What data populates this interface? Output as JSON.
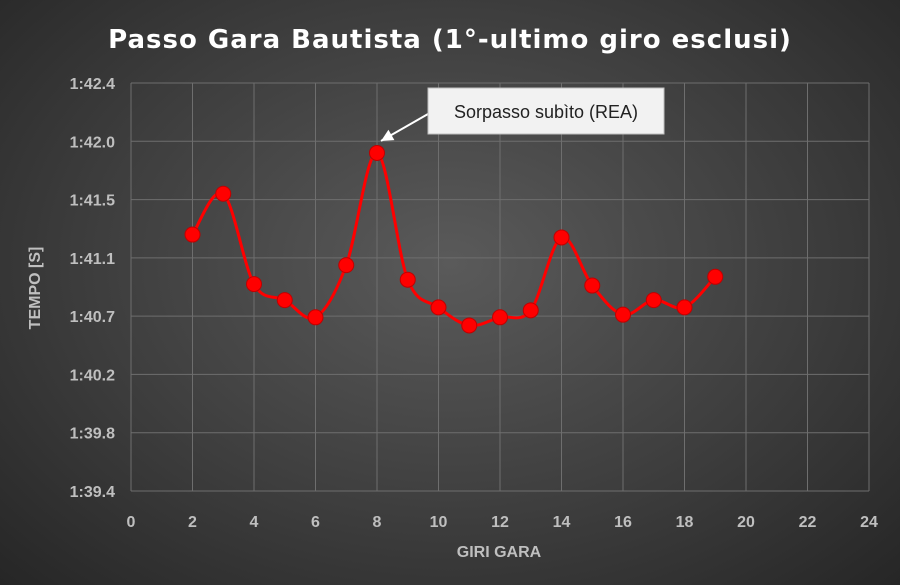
{
  "chart_data": {
    "type": "line",
    "title": "Passo Gara Bautista (1°-ultimo giro esclusi)",
    "xlabel": "GIRI GARA",
    "ylabel": "TEMPO [S]",
    "xlim": [
      0,
      24
    ],
    "x_ticks": [
      0,
      2,
      4,
      6,
      8,
      10,
      12,
      14,
      16,
      18,
      20,
      22,
      24
    ],
    "ylim": [
      99.4,
      102.4
    ],
    "y_ticks": [
      {
        "value": 99.4,
        "label": "1:39.4"
      },
      {
        "value": 99.8,
        "label": "1:39.8"
      },
      {
        "value": 100.2,
        "label": "1:40.2"
      },
      {
        "value": 100.7,
        "label": "1:40.7"
      },
      {
        "value": 101.1,
        "label": "1:41.1"
      },
      {
        "value": 101.5,
        "label": "1:41.5"
      },
      {
        "value": 102.0,
        "label": "1:42.0"
      },
      {
        "value": 102.4,
        "label": "1:42.4"
      }
    ],
    "grid": true,
    "series": [
      {
        "color": "#ff0000",
        "marker_color": "#ff0000",
        "x": [
          2,
          3,
          4,
          5,
          6,
          7,
          8,
          9,
          10,
          11,
          12,
          13,
          14,
          15,
          16,
          17,
          18,
          19
        ],
        "y": [
          101.26,
          101.55,
          100.92,
          100.81,
          100.69,
          101.05,
          101.9,
          100.95,
          100.76,
          100.62,
          100.69,
          100.74,
          101.24,
          100.91,
          100.71,
          100.81,
          100.76,
          100.97
        ]
      }
    ],
    "annotations": [
      {
        "text": "Sorpasso subìto (REA)",
        "x": 8,
        "y": 101.9
      }
    ]
  }
}
